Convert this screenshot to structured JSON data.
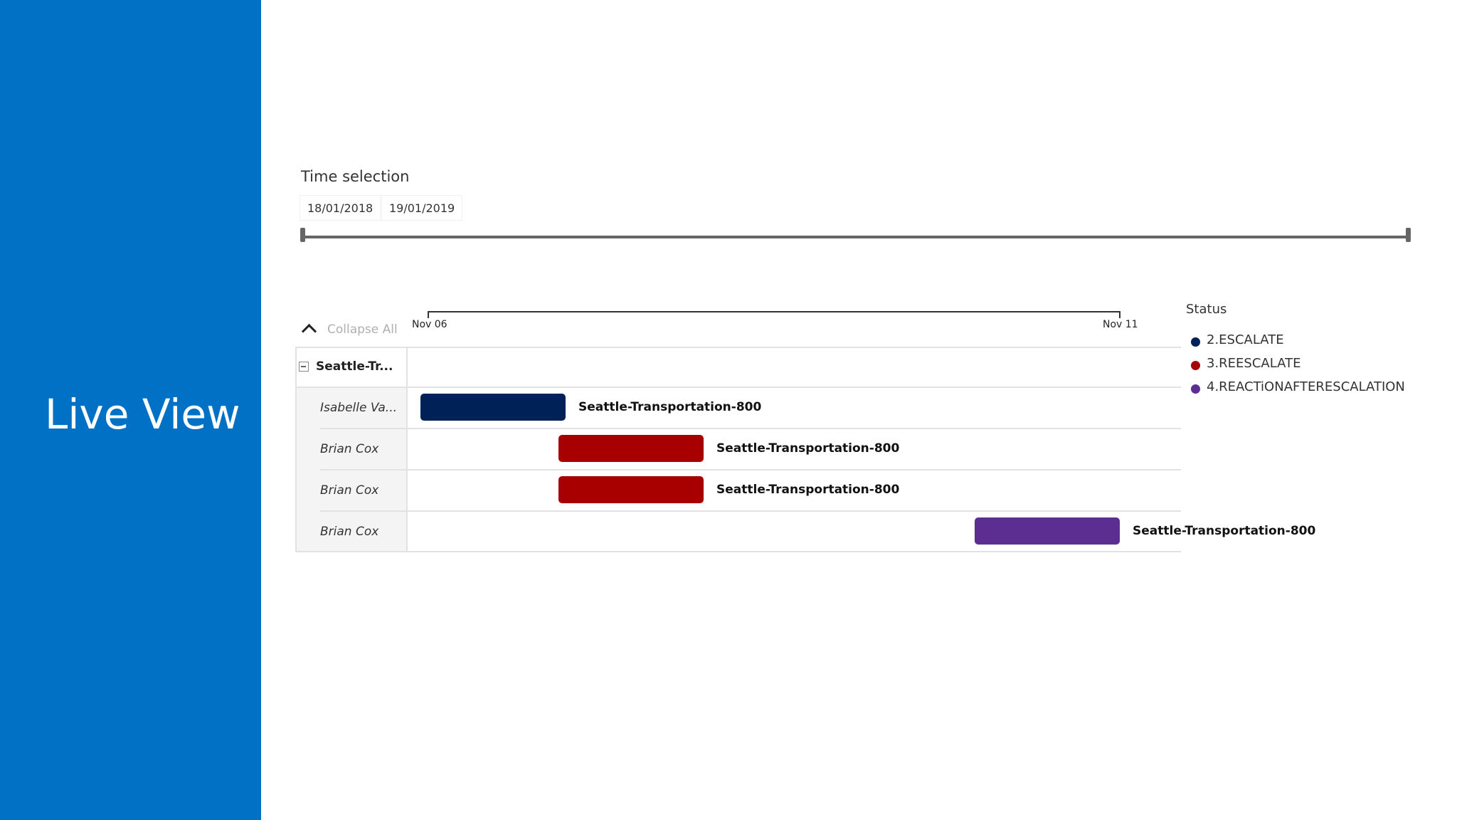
{
  "sidebar": {
    "title": "Live View"
  },
  "time_selection": {
    "label": "Time selection",
    "start_date": "18/01/2018",
    "end_date": "19/01/2019"
  },
  "gantt": {
    "collapse_label": "Collapse All",
    "axis_ticks": [
      "Nov 06",
      "Nov 11"
    ],
    "group": {
      "label": "Seattle-Tr..."
    },
    "rows": [
      {
        "person": "Isabelle Va...",
        "task": "Seattle-Transportation-800",
        "status": "2.ESCALATE"
      },
      {
        "person": "Brian Cox",
        "task": "Seattle-Transportation-800",
        "status": "3.REESCALATE"
      },
      {
        "person": "Brian Cox",
        "task": "Seattle-Transportation-800",
        "status": "3.REESCALATE"
      },
      {
        "person": "Brian Cox",
        "task": "Seattle-Transportation-800",
        "status": "4.REACTiONAFTERESCALATION"
      }
    ]
  },
  "legend": {
    "title": "Status",
    "items": [
      {
        "label": "2.ESCALATE",
        "color": "#002157"
      },
      {
        "label": "3.REESCALATE",
        "color": "#a80000"
      },
      {
        "label": "4.REACTiONAFTERESCALATION",
        "color": "#5c2e91"
      }
    ]
  }
}
